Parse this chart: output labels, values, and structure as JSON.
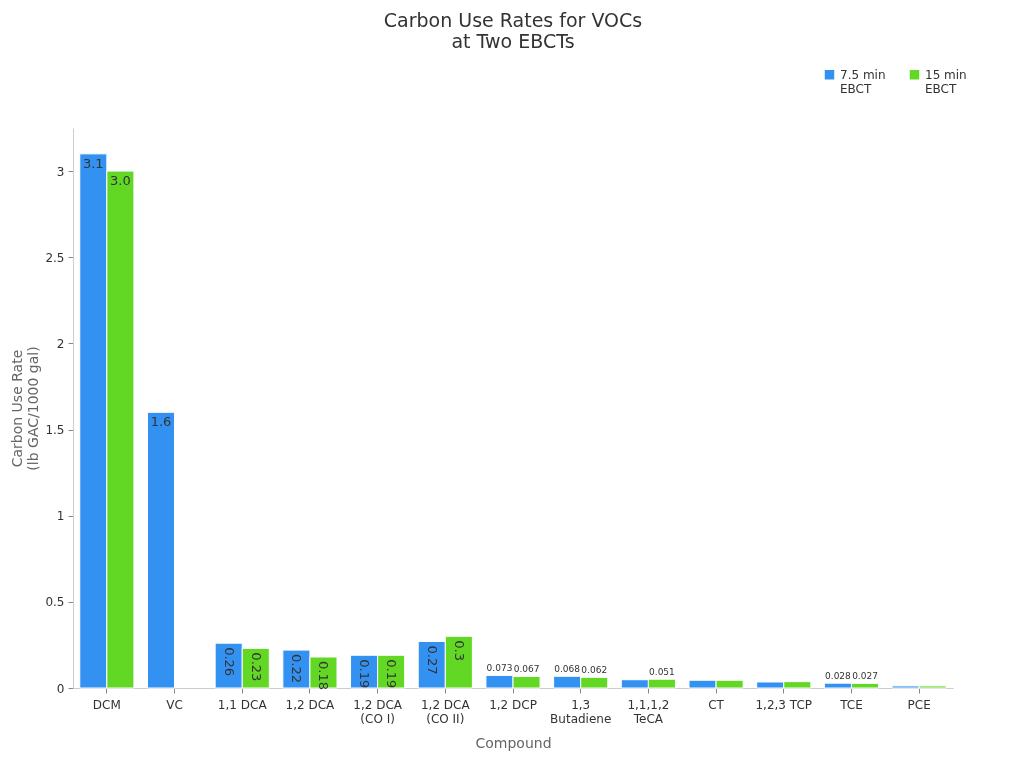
{
  "chart_data": {
    "type": "bar",
    "title": "Carbon Use Rates for VOCs at Two EBCTs",
    "xlabel": "Compound",
    "ylabel": "Carbon Use Rate (lb GAC/1000 gal)",
    "categories": [
      "DCM",
      "VC",
      "1,1 DCA",
      "1,2 DCA",
      "1,2 DCA (CO I)",
      "1,2 DCA (CO II)",
      "1,2 DCP",
      "1,3 Butadiene",
      "1,1,1,2 TeCA",
      "CT",
      "1,2,3 TCP",
      "TCE",
      "PCE"
    ],
    "series": [
      {
        "name": "7.5 min EBCT",
        "color": "#3391f2",
        "values": [
          3.1,
          1.6,
          0.26,
          0.22,
          0.19,
          0.27,
          0.073,
          0.068,
          0.048,
          0.045,
          0.035,
          0.028,
          0.012
        ],
        "value_labels": [
          "3.1",
          "1.6",
          "0.26",
          "0.22",
          "0.19",
          "0.27",
          "0.073",
          "0.068",
          null,
          null,
          null,
          "0.028",
          null
        ]
      },
      {
        "name": "15 min EBCT",
        "color": "#62d824",
        "values": [
          3.0,
          null,
          0.23,
          0.18,
          0.19,
          0.3,
          0.067,
          0.062,
          0.051,
          0.045,
          0.037,
          0.027,
          0.012
        ],
        "value_labels": [
          "3.0",
          null,
          "0.23",
          "0.18",
          "0.19",
          "0.3",
          "0.067",
          "0.062",
          "0.051",
          null,
          null,
          "0.027",
          null
        ]
      }
    ],
    "ylim": [
      0,
      3.25
    ],
    "yticks": [
      0,
      0.5,
      1,
      1.5,
      2,
      2.5,
      3
    ],
    "grid": false,
    "legend": "top right"
  }
}
